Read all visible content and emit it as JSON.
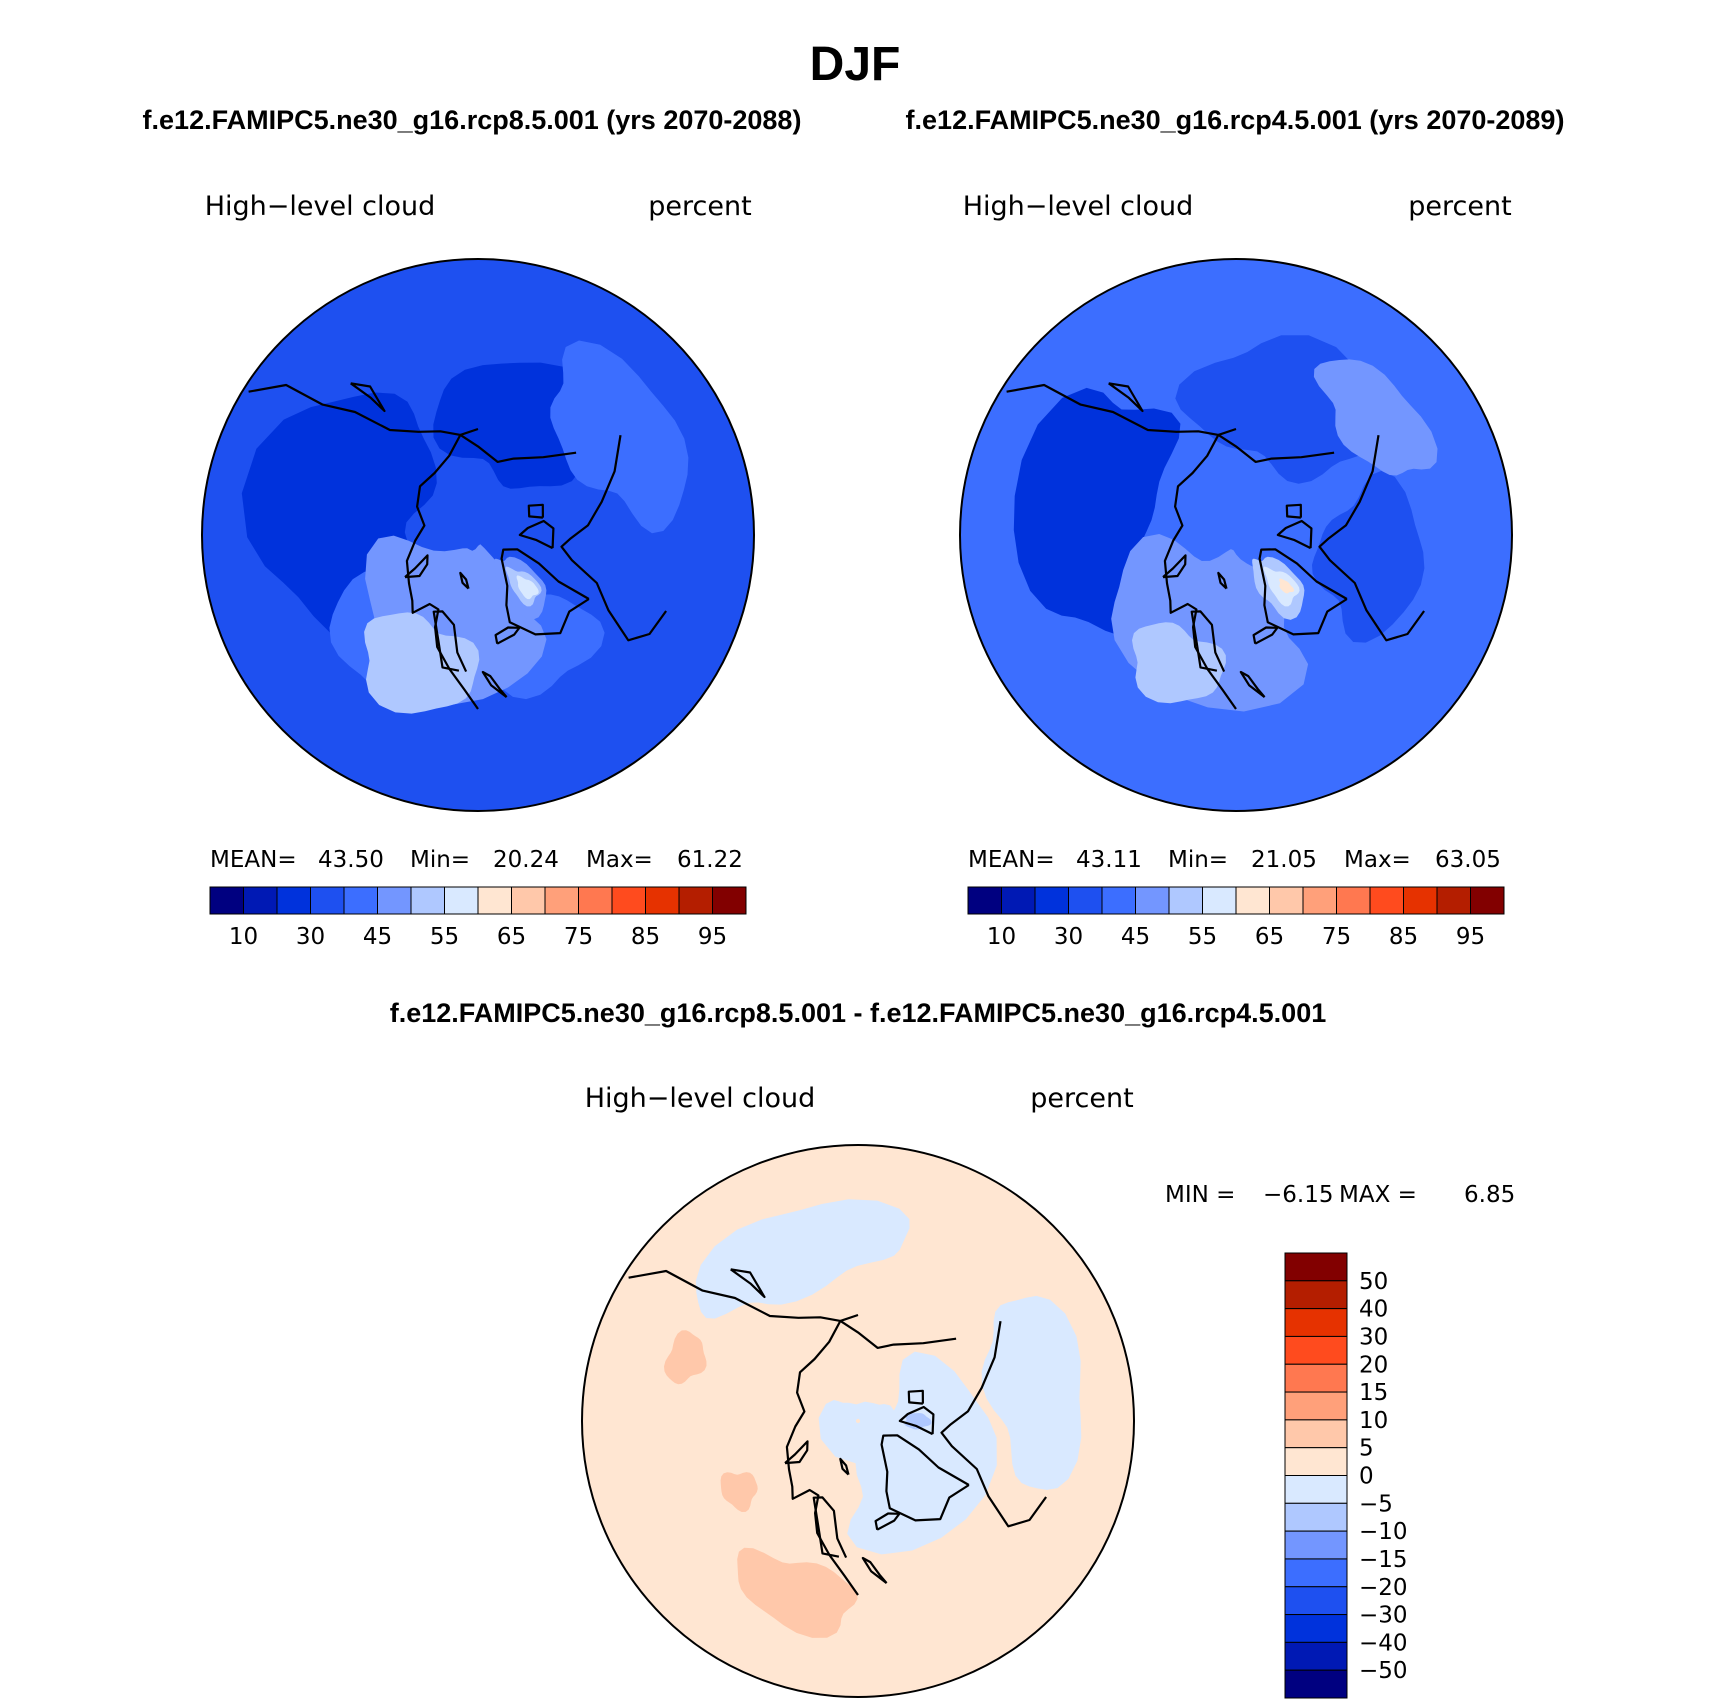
{
  "page": {
    "title": "DJF",
    "left_run": "f.e12.FAMIPC5.ne30_g16.rcp8.5.001 (yrs 2070-2088)",
    "right_run": "f.e12.FAMIPC5.ne30_g16.rcp4.5.001 (yrs 2070-2089)",
    "diff_title": "f.e12.FAMIPC5.ne30_g16.rcp8.5.001 - f.e12.FAMIPC5.ne30_g16.rcp4.5.001"
  },
  "colors": {
    "abs_scale": [
      "#000080",
      "#0019b4",
      "#0032dc",
      "#1e50f0",
      "#3c6eff",
      "#7396ff",
      "#afc8ff",
      "#d9e9ff",
      "#ffe6d2",
      "#ffc8aa",
      "#ffa07a",
      "#ff7850",
      "#ff4b1e",
      "#e63200",
      "#b41e00",
      "#820000"
    ],
    "diff_scale": [
      "#000080",
      "#0019b4",
      "#0032dc",
      "#1e50f0",
      "#3c6eff",
      "#7396ff",
      "#afc8ff",
      "#d9e9ff",
      "#ffe6d2",
      "#ffc8aa",
      "#ffa07a",
      "#ff7850",
      "#ff4b1e",
      "#e63200",
      "#b41e00",
      "#820000"
    ],
    "coast": "#000000"
  },
  "chart_data": [
    {
      "type": "heatmap",
      "title": "High−level cloud",
      "units": "percent",
      "projection": "north-polar stereographic",
      "stats": {
        "mean_label": "MEAN=",
        "mean": "43.50",
        "min_label": "Min=",
        "min": "20.24",
        "max_label": "Max=",
        "max": "61.22"
      },
      "colorbar": {
        "orientation": "horizontal",
        "tick_labels": [
          "10",
          "30",
          "45",
          "55",
          "65",
          "75",
          "85",
          "95"
        ],
        "levels": 16
      },
      "field": {
        "background_level": 3,
        "regions": [
          {
            "level": 2,
            "lon": 100,
            "lat": 58,
            "rlon": 55,
            "rlat": 18
          },
          {
            "level": 2,
            "lon": 200,
            "lat": 62,
            "rlon": 40,
            "rlat": 14
          },
          {
            "level": 4,
            "lon": 235,
            "lat": 50,
            "rlon": 30,
            "rlat": 12
          },
          {
            "level": 4,
            "lon": 330,
            "lat": 62,
            "rlon": 25,
            "rlat": 12
          },
          {
            "level": 4,
            "lon": 40,
            "lat": 62,
            "rlon": 28,
            "rlat": 16
          },
          {
            "level": 5,
            "lon": 20,
            "lat": 70,
            "rlon": 60,
            "rlat": 18
          },
          {
            "level": 6,
            "lon": 25,
            "lat": 57,
            "rlon": 25,
            "rlat": 10
          },
          {
            "level": 5,
            "lon": 320,
            "lat": 75,
            "rlon": 18,
            "rlat": 8
          },
          {
            "level": 6,
            "lon": 318,
            "lat": 74,
            "rlon": 10,
            "rlat": 5
          },
          {
            "level": 7,
            "lon": 317,
            "lat": 73,
            "rlon": 6,
            "rlat": 3
          }
        ]
      }
    },
    {
      "type": "heatmap",
      "title": "High−level cloud",
      "units": "percent",
      "projection": "north-polar stereographic",
      "stats": {
        "mean_label": "MEAN=",
        "mean": "43.11",
        "min_label": "Min=",
        "min": "21.05",
        "max_label": "Max=",
        "max": "63.05"
      },
      "colorbar": {
        "orientation": "horizontal",
        "tick_labels": [
          "10",
          "30",
          "45",
          "55",
          "65",
          "75",
          "85",
          "95"
        ],
        "levels": 16
      },
      "field": {
        "background_level": 4,
        "regions": [
          {
            "level": 2,
            "lon": 100,
            "lat": 55,
            "rlon": 50,
            "rlat": 15
          },
          {
            "level": 3,
            "lon": 200,
            "lat": 58,
            "rlon": 40,
            "rlat": 14
          },
          {
            "level": 3,
            "lon": 280,
            "lat": 58,
            "rlon": 30,
            "rlat": 12
          },
          {
            "level": 5,
            "lon": 20,
            "lat": 68,
            "rlon": 60,
            "rlat": 18
          },
          {
            "level": 6,
            "lon": 25,
            "lat": 57,
            "rlon": 20,
            "rlat": 8
          },
          {
            "level": 5,
            "lon": 230,
            "lat": 48,
            "rlon": 22,
            "rlat": 8
          },
          {
            "level": 6,
            "lon": 320,
            "lat": 75,
            "rlon": 18,
            "rlat": 8
          },
          {
            "level": 7,
            "lon": 318,
            "lat": 74,
            "rlon": 10,
            "rlat": 5
          },
          {
            "level": 8,
            "lon": 316,
            "lat": 73,
            "rlon": 4,
            "rlat": 2
          }
        ]
      }
    },
    {
      "type": "heatmap",
      "title": "High−level cloud",
      "units": "percent",
      "projection": "north-polar stereographic",
      "stats": {
        "min_label": "MIN =",
        "min": "−6.15",
        "max_label": "MAX =",
        "max": "6.85"
      },
      "colorbar": {
        "orientation": "vertical",
        "tick_labels": [
          "50",
          "40",
          "30",
          "20",
          "15",
          "10",
          "5",
          "0",
          "−5",
          "−10",
          "−15",
          "−20",
          "−30",
          "−40",
          "−50"
        ],
        "levels": 16
      },
      "field": {
        "background_level": 8,
        "regions": [
          {
            "level": 7,
            "lon": 300,
            "lat": 72,
            "rlon": 70,
            "rlat": 16
          },
          {
            "level": 7,
            "lon": 0,
            "lat": 86,
            "rlon": 180,
            "rlat": 6
          },
          {
            "level": 7,
            "lon": 160,
            "lat": 48,
            "rlon": 35,
            "rlat": 9
          },
          {
            "level": 7,
            "lon": 260,
            "lat": 48,
            "rlon": 30,
            "rlat": 10
          },
          {
            "level": 6,
            "lon": 270,
            "lat": 76,
            "rlon": 8,
            "rlat": 3
          },
          {
            "level": 9,
            "lon": 20,
            "lat": 48,
            "rlon": 20,
            "rlat": 7
          },
          {
            "level": 9,
            "lon": 60,
            "lat": 58,
            "rlon": 8,
            "rlat": 4
          },
          {
            "level": 9,
            "lon": 110,
            "lat": 48,
            "rlon": 8,
            "rlat": 4
          }
        ]
      }
    }
  ]
}
